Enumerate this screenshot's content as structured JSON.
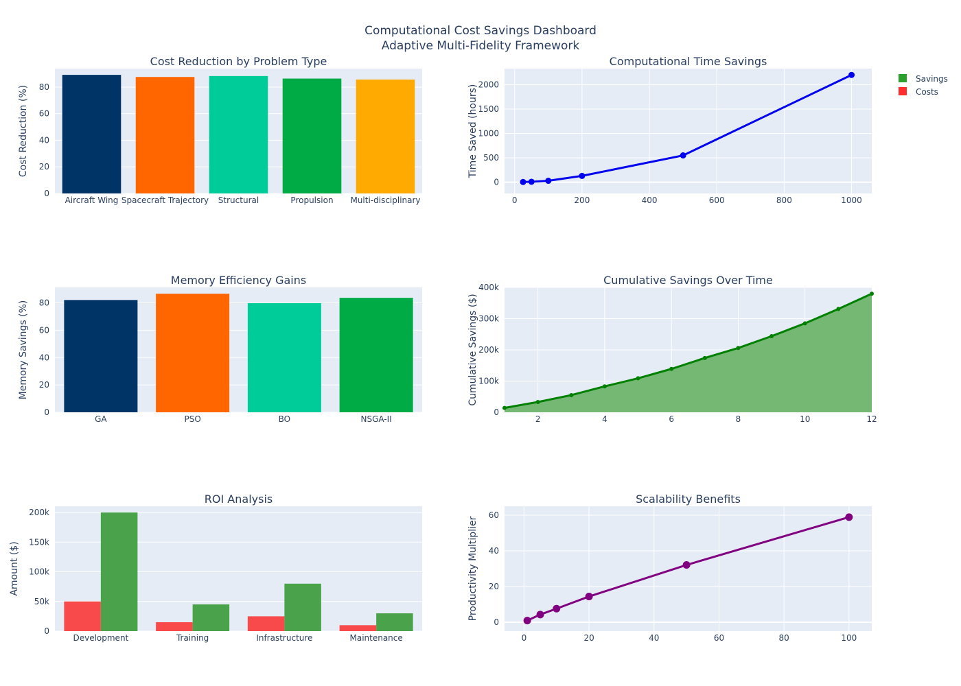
{
  "title_line1": "Computational Cost Savings Dashboard",
  "title_line2": "Adaptive Multi-Fidelity Framework",
  "legend": [
    {
      "name": "Savings",
      "color": "#2ca02c"
    },
    {
      "name": "Costs",
      "color": "#ff2d2d"
    }
  ],
  "colors": {
    "plot_bg": "#e5ecf6",
    "grid": "#ffffff",
    "blue_line": "#0000ee",
    "green_line": "#008000",
    "green_fill": "#74b874",
    "purple_line": "#800080",
    "savings_bar": "#4aa24a",
    "cost_bar": "#f8494b"
  },
  "chart_data": [
    {
      "id": "cost_reduction",
      "type": "bar",
      "title": "Cost Reduction by Problem Type",
      "xlabel": "",
      "ylabel": "Cost Reduction (%)",
      "categories": [
        "Aircraft Wing",
        "Spacecraft Trajectory",
        "Structural",
        "Propulsion",
        "Multi-disciplinary"
      ],
      "values": [
        89.2,
        87.6,
        88.3,
        86.4,
        85.7
      ],
      "colors": [
        "#003366",
        "#ff6600",
        "#00cc99",
        "#00aa44",
        "#ffaa00"
      ],
      "ylim": [
        0,
        93.9
      ],
      "yticks": [
        0,
        20,
        40,
        60,
        80
      ],
      "grid": true
    },
    {
      "id": "time_savings",
      "type": "line",
      "title": "Computational Time Savings",
      "xlabel": "",
      "ylabel": "Time Saved (hours)",
      "x": [
        25,
        50,
        100,
        200,
        500,
        1000
      ],
      "y": [
        5,
        10,
        30,
        130,
        550,
        2200
      ],
      "xlim": [
        -30,
        1060
      ],
      "ylim": [
        -230,
        2330
      ],
      "xticks": [
        0,
        200,
        400,
        600,
        800,
        1000
      ],
      "yticks": [
        0,
        500,
        1000,
        1500,
        2000
      ],
      "grid": true
    },
    {
      "id": "memory",
      "type": "bar",
      "title": "Memory Efficiency Gains",
      "xlabel": "",
      "ylabel": "Memory Savings (%)",
      "categories": [
        "GA",
        "PSO",
        "BO",
        "NSGA-II"
      ],
      "values": [
        82.1,
        86.7,
        79.8,
        83.7
      ],
      "colors": [
        "#003366",
        "#ff6600",
        "#00cc99",
        "#00aa44"
      ],
      "ylim": [
        0,
        91.3
      ],
      "yticks": [
        0,
        20,
        40,
        60,
        80
      ],
      "grid": true
    },
    {
      "id": "cumulative",
      "type": "area",
      "title": "Cumulative Savings Over Time",
      "xlabel": "",
      "ylabel": "Cumulative Savings ($)",
      "x": [
        1,
        2,
        3,
        4,
        5,
        6,
        7,
        8,
        9,
        10,
        11,
        12
      ],
      "y": [
        14000,
        33000,
        55000,
        83000,
        109000,
        139000,
        174000,
        206000,
        244000,
        285000,
        331000,
        380000
      ],
      "xlim": [
        1,
        12
      ],
      "ylim": [
        0,
        400000
      ],
      "xticks": [
        2,
        4,
        6,
        8,
        10,
        12
      ],
      "yticks": [
        0,
        100000,
        200000,
        300000,
        400000
      ],
      "ytick_labels": [
        "0",
        "100k",
        "200k",
        "300k",
        "400k"
      ],
      "grid": true
    },
    {
      "id": "roi",
      "type": "bar",
      "title": "ROI Analysis",
      "xlabel": "",
      "ylabel": "Amount ($)",
      "categories": [
        "Development",
        "Training",
        "Infrastructure",
        "Maintenance"
      ],
      "series": [
        {
          "name": "Costs",
          "values": [
            50000,
            15000,
            25000,
            10000
          ],
          "color": "#f8494b"
        },
        {
          "name": "Savings",
          "values": [
            200000,
            45000,
            80000,
            30000
          ],
          "color": "#4aa24a"
        }
      ],
      "ylim": [
        0,
        210500
      ],
      "yticks": [
        0,
        50000,
        100000,
        150000,
        200000
      ],
      "ytick_labels": [
        "0",
        "50k",
        "100k",
        "150k",
        "200k"
      ],
      "grid": true
    },
    {
      "id": "scalability",
      "type": "line",
      "title": "Scalability Benefits",
      "xlabel": "",
      "ylabel": "Productivity Multiplier",
      "x": [
        1,
        5,
        10,
        20,
        50,
        100
      ],
      "y": [
        0.9,
        4.3,
        7.6,
        14.4,
        32.1,
        58.9
      ],
      "xlim": [
        -6,
        107
      ],
      "ylim": [
        -5,
        65
      ],
      "xticks": [
        0,
        20,
        40,
        60,
        80,
        100
      ],
      "yticks": [
        0,
        20,
        40,
        60
      ],
      "grid": true
    }
  ]
}
